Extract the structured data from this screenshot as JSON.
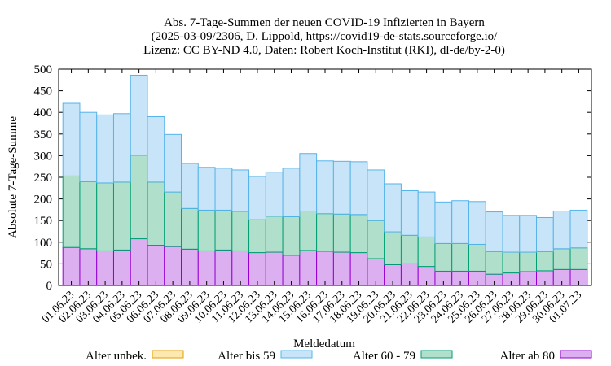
{
  "chart_data": {
    "type": "bar",
    "stacked": true,
    "title_lines": [
      "Abs. 7-Tage-Summen der neuen COVID-19 Infizierten in Bayern",
      "(2025-03-09/2306, D. Lippold, https://covid19-de-stats.sourceforge.io/",
      "Lizenz: CC BY-ND 4.0, Daten: Robert Koch-Institut (RKI), dl-de/by-2-0)"
    ],
    "xlabel": "Meldedatum",
    "ylabel": "Absolute 7-Tage-Summe",
    "ylim": [
      0,
      500
    ],
    "yticks": [
      0,
      50,
      100,
      150,
      200,
      250,
      300,
      350,
      400,
      450,
      500
    ],
    "categories": [
      "01.06.23",
      "02.06.23",
      "03.06.23",
      "04.06.23",
      "05.06.23",
      "06.06.23",
      "07.06.23",
      "08.06.23",
      "09.06.23",
      "10.06.23",
      "11.06.23",
      "12.06.23",
      "13.06.23",
      "14.06.23",
      "15.06.23",
      "16.06.23",
      "17.06.23",
      "18.06.23",
      "19.06.23",
      "20.06.23",
      "21.06.23",
      "22.06.23",
      "23.06.23",
      "24.06.23",
      "25.06.23",
      "26.06.23",
      "27.06.23",
      "28.06.23",
      "29.06.23",
      "30.06.23",
      "01.07.23"
    ],
    "series": [
      {
        "name": "Alter ab 80",
        "color": "#dcb0f0",
        "stroke": "#9400d3",
        "values": [
          88,
          85,
          80,
          82,
          108,
          93,
          90,
          84,
          80,
          82,
          80,
          76,
          77,
          70,
          81,
          79,
          77,
          76,
          62,
          48,
          50,
          44,
          33,
          33,
          33,
          26,
          29,
          32,
          34,
          37,
          37
        ]
      },
      {
        "name": "Alter 60 - 79",
        "color": "#b0e0cc",
        "stroke": "#009e73",
        "values": [
          165,
          155,
          157,
          157,
          193,
          146,
          126,
          94,
          94,
          92,
          91,
          76,
          83,
          89,
          91,
          87,
          88,
          88,
          88,
          76,
          66,
          68,
          64,
          64,
          62,
          52,
          48,
          45,
          44,
          48,
          50
        ]
      },
      {
        "name": "Alter bis 59",
        "color": "#c8e4f8",
        "stroke": "#56b4e9",
        "values": [
          168,
          160,
          157,
          158,
          185,
          151,
          133,
          104,
          99,
          97,
          96,
          100,
          102,
          112,
          133,
          122,
          122,
          122,
          117,
          111,
          103,
          104,
          96,
          99,
          99,
          92,
          85,
          85,
          79,
          87,
          87
        ]
      },
      {
        "name": "Alter unbek.",
        "color": "#fde8b0",
        "stroke": "#e69f00",
        "values": [
          0,
          0,
          0,
          0,
          0,
          0,
          0,
          0,
          0,
          0,
          0,
          0,
          0,
          0,
          0,
          0,
          0,
          0,
          0,
          0,
          0,
          0,
          0,
          0,
          0,
          0,
          0,
          0,
          0,
          0,
          0
        ]
      }
    ],
    "legend_order": [
      "Alter unbek.",
      "Alter bis 59",
      "Alter 60 - 79",
      "Alter ab 80"
    ],
    "legend_position": "bottom",
    "grid": false
  }
}
